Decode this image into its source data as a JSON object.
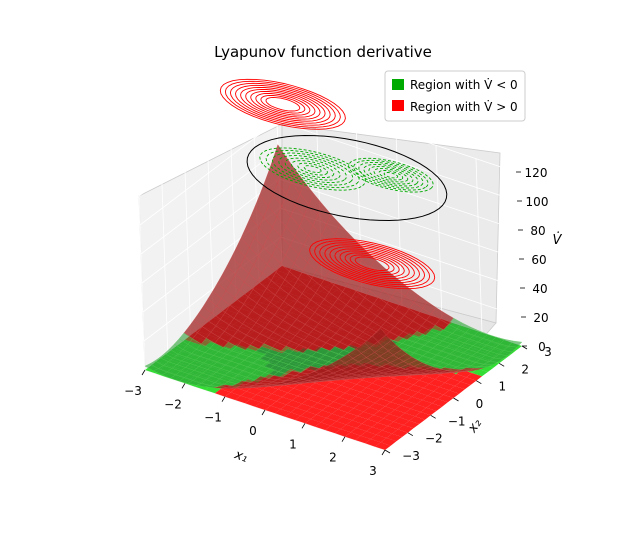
{
  "chart_data": {
    "type": "surface3d",
    "title": "Lyapunov function derivative",
    "xlabel": "x₁",
    "ylabel": "x₂",
    "zlabel": "V̇",
    "xlim": [
      -3,
      3
    ],
    "ylim": [
      -3,
      3
    ],
    "zlim": [
      0,
      120
    ],
    "x_ticks": [
      "−3",
      "−2",
      "−1",
      "0",
      "1",
      "2",
      "3"
    ],
    "y_ticks": [
      "−3",
      "−2",
      "−1",
      "0",
      "1",
      "2",
      "3"
    ],
    "z_ticks": [
      "0",
      "20",
      "40",
      "60",
      "80",
      "100",
      "120"
    ],
    "legend_location": "top-right",
    "series": [
      {
        "name": "Region with V̇ < 0",
        "legend_label": "Region with V̇ < 0",
        "color": "#00aa00"
      },
      {
        "name": "Region with V̇ > 0",
        "legend_label": "Region with V̇ > 0",
        "color": "#ff0000"
      }
    ],
    "surface_color": "#8b1a1a",
    "grid": true
  }
}
